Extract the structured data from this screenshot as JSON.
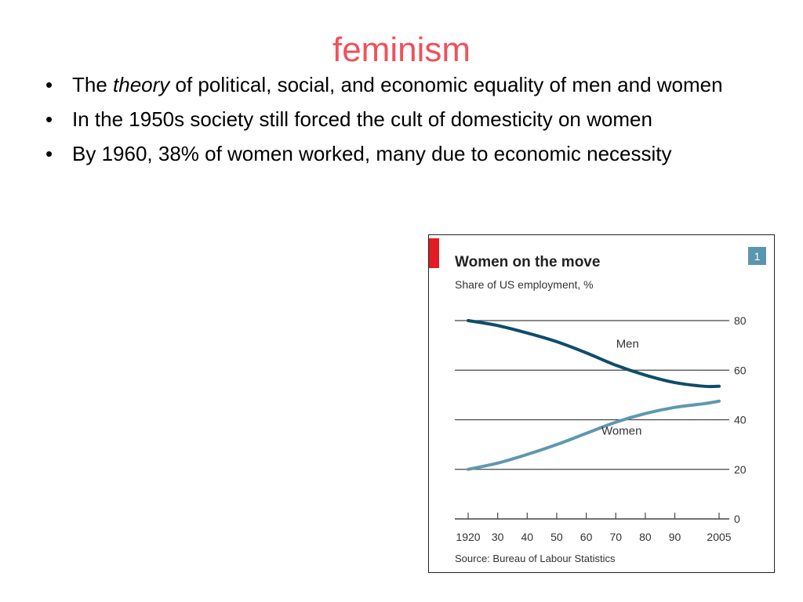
{
  "slide": {
    "title": "feminism",
    "bullets": [
      {
        "prefix": "The ",
        "em": "theory",
        "suffix": " of political, social, and economic equality of men and women"
      },
      {
        "text": "In the 1950s society still forced the cult of domesticity on women"
      },
      {
        "text": "By 1960, 38% of women worked, many due to economic necessity"
      }
    ],
    "bullet_glyph": "•"
  },
  "chart_data": {
    "type": "line",
    "title": "Women on the move",
    "subtitle": "Share of US employment, %",
    "badge": "1",
    "source": "Source: Bureau of Labour Statistics",
    "x_tick_labels": [
      "1920",
      "30",
      "40",
      "50",
      "60",
      "70",
      "80",
      "90",
      "2005"
    ],
    "x_ticks": [
      1920,
      1930,
      1940,
      1950,
      1960,
      1970,
      1980,
      1990,
      2005
    ],
    "xlim": [
      1920,
      2005
    ],
    "y_ticks": [
      0,
      20,
      40,
      60,
      80
    ],
    "ylim": [
      0,
      80
    ],
    "y_axis_position": "right",
    "grid": true,
    "legend": "inline labels",
    "series": [
      {
        "name": "Men",
        "color": "#0f4c6b",
        "x": [
          1920,
          1930,
          1940,
          1950,
          1960,
          1970,
          1980,
          1990,
          2000,
          2005
        ],
        "values": [
          80,
          78,
          75,
          71.5,
          67,
          62,
          58,
          55,
          53.5,
          53.5
        ]
      },
      {
        "name": "Women",
        "color": "#5f97b0",
        "x": [
          1920,
          1930,
          1940,
          1950,
          1960,
          1970,
          1980,
          1990,
          2000,
          2005
        ],
        "values": [
          20,
          22.5,
          26,
          30,
          34.5,
          39,
          42.5,
          45,
          46.5,
          47.5
        ]
      }
    ],
    "colors": {
      "accent_bar": "#e31b23",
      "badge": "#5a96b0",
      "gridline": "#444444"
    }
  }
}
